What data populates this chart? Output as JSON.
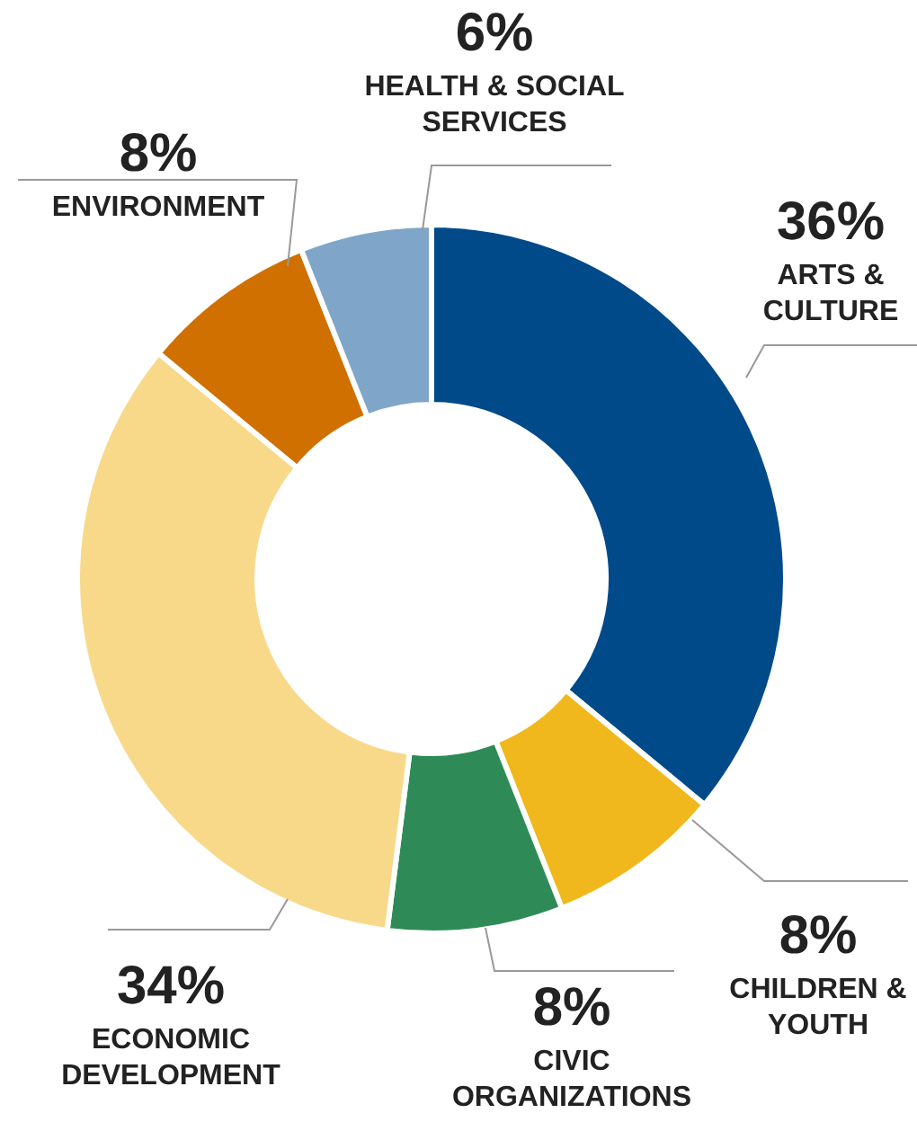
{
  "chart_data": {
    "type": "donut",
    "categories": [
      "ARTS & CULTURE",
      "CHILDREN & YOUTH",
      "CIVIC ORGANIZATIONS",
      "ECONOMIC DEVELOPMENT",
      "ENVIRONMENT",
      "HEALTH & SOCIAL SERVICES"
    ],
    "values": [
      36,
      8,
      8,
      34,
      8,
      6
    ],
    "value_labels": [
      "36%",
      "8%",
      "8%",
      "34%",
      "8%",
      "6%"
    ],
    "colors": [
      "#004a8a",
      "#f0b81c",
      "#2e8b57",
      "#f8d98a",
      "#d07000",
      "#7fa6c8"
    ]
  }
}
